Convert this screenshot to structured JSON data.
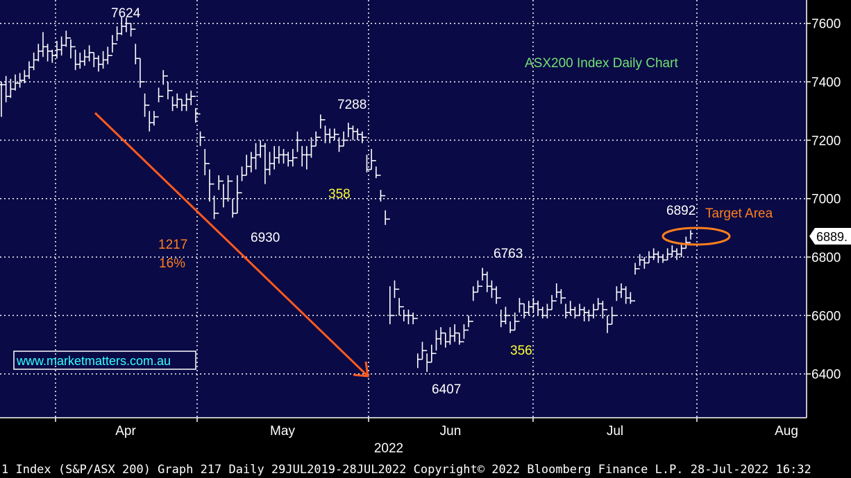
{
  "chart_data": {
    "type": "bar",
    "style": "ohlc",
    "title": "ASX200 Index Daily Chart",
    "ylim": [
      6250,
      7680
    ],
    "yticks": [
      6400,
      6600,
      6800,
      7000,
      7200,
      7400,
      7600
    ],
    "ytick_labels": [
      "6400",
      "6600",
      "6800",
      "7000",
      "7200",
      "7400",
      "7600"
    ],
    "month_labels": [
      "Apr",
      "May",
      "Jun",
      "Jul",
      "Aug"
    ],
    "year_label": "2022",
    "last_price_label": "6889.",
    "grid": true,
    "series": [
      {
        "values": [
          [
            7390,
            7280,
            7400
          ],
          [
            7350,
            7330,
            7420
          ],
          [
            7375,
            7345,
            7410
          ],
          [
            7395,
            7370,
            7425
          ],
          [
            7405,
            7380,
            7430
          ],
          [
            7420,
            7395,
            7440
          ],
          [
            7450,
            7410,
            7470
          ],
          [
            7475,
            7440,
            7500
          ],
          [
            7505,
            7470,
            7530
          ],
          [
            7520,
            7485,
            7570
          ],
          [
            7505,
            7470,
            7530
          ],
          [
            7490,
            7465,
            7510
          ],
          [
            7510,
            7480,
            7540
          ],
          [
            7525,
            7490,
            7555
          ],
          [
            7550,
            7520,
            7575
          ],
          [
            7520,
            7480,
            7545
          ],
          [
            7460,
            7440,
            7510
          ],
          [
            7470,
            7445,
            7500
          ],
          [
            7485,
            7455,
            7510
          ],
          [
            7500,
            7470,
            7525
          ],
          [
            7480,
            7450,
            7500
          ],
          [
            7460,
            7435,
            7490
          ],
          [
            7475,
            7445,
            7505
          ],
          [
            7490,
            7460,
            7520
          ],
          [
            7530,
            7500,
            7560
          ],
          [
            7565,
            7540,
            7590
          ],
          [
            7590,
            7560,
            7624
          ],
          [
            7600,
            7570,
            7620
          ],
          [
            7580,
            7555,
            7600
          ],
          [
            7480,
            7460,
            7530
          ],
          [
            7400,
            7380,
            7480
          ],
          [
            7320,
            7280,
            7360
          ],
          [
            7260,
            7230,
            7300
          ],
          [
            7280,
            7250,
            7300
          ],
          [
            7350,
            7330,
            7380
          ],
          [
            7420,
            7390,
            7440
          ],
          [
            7370,
            7340,
            7400
          ],
          [
            7320,
            7300,
            7350
          ],
          [
            7340,
            7310,
            7360
          ],
          [
            7320,
            7300,
            7340
          ],
          [
            7340,
            7300,
            7360
          ],
          [
            7350,
            7320,
            7370
          ],
          [
            7290,
            7260,
            7310
          ],
          [
            7210,
            7180,
            7230
          ],
          [
            7120,
            7080,
            7170
          ],
          [
            7050,
            6990,
            7100
          ],
          [
            6950,
            6930,
            7010
          ],
          [
            7060,
            7030,
            7080
          ],
          [
            7000,
            6970,
            7050
          ],
          [
            7060,
            6990,
            7080
          ],
          [
            6950,
            6935,
            7000
          ],
          [
            7020,
            6950,
            7080
          ],
          [
            7080,
            7060,
            7110
          ],
          [
            7110,
            7080,
            7150
          ],
          [
            7140,
            7090,
            7160
          ],
          [
            7150,
            7100,
            7190
          ],
          [
            7180,
            7140,
            7200
          ],
          [
            7100,
            7050,
            7190
          ],
          [
            7120,
            7080,
            7160
          ],
          [
            7140,
            7100,
            7180
          ],
          [
            7150,
            7120,
            7180
          ],
          [
            7150,
            7120,
            7170
          ],
          [
            7130,
            7110,
            7160
          ],
          [
            7140,
            7110,
            7170
          ],
          [
            7200,
            7160,
            7230
          ],
          [
            7150,
            7110,
            7180
          ],
          [
            7150,
            7100,
            7180
          ],
          [
            7180,
            7140,
            7210
          ],
          [
            7210,
            7180,
            7230
          ],
          [
            7270,
            7240,
            7288
          ],
          [
            7220,
            7190,
            7250
          ],
          [
            7210,
            7190,
            7240
          ],
          [
            7220,
            7200,
            7240
          ],
          [
            7180,
            7160,
            7210
          ],
          [
            7200,
            7180,
            7230
          ],
          [
            7240,
            7210,
            7260
          ],
          [
            7230,
            7200,
            7250
          ],
          [
            7220,
            7200,
            7240
          ],
          [
            7210,
            7190,
            7230
          ],
          [
            7100,
            7090,
            7150
          ],
          [
            7130,
            7100,
            7170
          ],
          [
            7080,
            7070,
            7110
          ],
          [
            7010,
            6990,
            7030
          ],
          [
            6930,
            6910,
            6960
          ],
          [
            6600,
            6570,
            6700
          ],
          [
            6690,
            6660,
            6720
          ],
          [
            6630,
            6600,
            6660
          ],
          [
            6600,
            6580,
            6620
          ],
          [
            6600,
            6570,
            6620
          ],
          [
            6590,
            6570,
            6610
          ],
          [
            6450,
            6420,
            6470
          ],
          [
            6480,
            6450,
            6510
          ],
          [
            6440,
            6407,
            6470
          ],
          [
            6470,
            6440,
            6500
          ],
          [
            6520,
            6480,
            6550
          ],
          [
            6540,
            6500,
            6560
          ],
          [
            6510,
            6490,
            6540
          ],
          [
            6530,
            6500,
            6560
          ],
          [
            6540,
            6510,
            6570
          ],
          [
            6510,
            6500,
            6540
          ],
          [
            6550,
            6520,
            6570
          ],
          [
            6580,
            6560,
            6600
          ],
          [
            6680,
            6650,
            6700
          ],
          [
            6700,
            6680,
            6720
          ],
          [
            6740,
            6720,
            6763
          ],
          [
            6700,
            6680,
            6750
          ],
          [
            6690,
            6660,
            6720
          ],
          [
            6660,
            6640,
            6700
          ],
          [
            6580,
            6560,
            6620
          ],
          [
            6600,
            6570,
            6630
          ],
          [
            6550,
            6540,
            6580
          ],
          [
            6580,
            6550,
            6610
          ],
          [
            6640,
            6610,
            6660
          ],
          [
            6610,
            6590,
            6640
          ],
          [
            6630,
            6600,
            6650
          ],
          [
            6640,
            6610,
            6660
          ],
          [
            6620,
            6600,
            6650
          ],
          [
            6600,
            6590,
            6630
          ],
          [
            6620,
            6590,
            6640
          ],
          [
            6650,
            6620,
            6670
          ],
          [
            6680,
            6660,
            6710
          ],
          [
            6660,
            6640,
            6690
          ],
          [
            6610,
            6590,
            6640
          ],
          [
            6620,
            6600,
            6650
          ],
          [
            6600,
            6590,
            6630
          ],
          [
            6620,
            6600,
            6640
          ],
          [
            6610,
            6580,
            6630
          ],
          [
            6600,
            6580,
            6620
          ],
          [
            6620,
            6590,
            6640
          ],
          [
            6640,
            6620,
            6660
          ],
          [
            6620,
            6590,
            6650
          ],
          [
            6570,
            6540,
            6600
          ],
          [
            6600,
            6570,
            6630
          ],
          [
            6680,
            6650,
            6700
          ],
          [
            6690,
            6660,
            6710
          ],
          [
            6660,
            6640,
            6700
          ],
          [
            6650,
            6640,
            6680
          ],
          [
            6760,
            6740,
            6780
          ],
          [
            6790,
            6770,
            6810
          ],
          [
            6780,
            6760,
            6800
          ],
          [
            6800,
            6780,
            6820
          ],
          [
            6810,
            6790,
            6830
          ],
          [
            6800,
            6780,
            6820
          ],
          [
            6790,
            6780,
            6810
          ],
          [
            6810,
            6790,
            6830
          ],
          [
            6820,
            6800,
            6840
          ],
          [
            6810,
            6790,
            6830
          ],
          [
            6830,
            6800,
            6850
          ],
          [
            6850,
            6830,
            6870
          ],
          [
            6880,
            6860,
            6892
          ]
        ]
      }
    ],
    "annotations": [
      {
        "text": "7624",
        "value": 7624,
        "color": "#ffffff"
      },
      {
        "text": "6930",
        "value": 6930,
        "color": "#ffffff"
      },
      {
        "text": "7288",
        "value": 7288,
        "color": "#ffffff"
      },
      {
        "text": "358",
        "value": 358,
        "color": "#ffff33"
      },
      {
        "text": "6407",
        "value": 6407,
        "color": "#ffffff"
      },
      {
        "text": "6763",
        "value": 6763,
        "color": "#ffffff"
      },
      {
        "text": "356",
        "value": 356,
        "color": "#ffff33"
      },
      {
        "text": "6892",
        "value": 6892,
        "color": "#ffffff"
      },
      {
        "text": "Target Area",
        "color": "#ff7f1e"
      },
      {
        "text": "1217",
        "value": 1217,
        "color": "#ff7f1e"
      },
      {
        "text": "16%",
        "color": "#ff7f1e"
      }
    ],
    "watermark": "www.marketmatters.com.au",
    "footer": "1 Index (S&P/ASX 200) Graph 217  Daily 29JUL2019-28JUL2022  Copyright© 2022 Bloomberg Finance L.P. 28-Jul-2022 16:32",
    "colors": {
      "plot_bg": "#0a0a46",
      "price": "#ffffff",
      "grid": "#ffffff",
      "title": "#72e072",
      "arrow": "#ff5a1e",
      "annotation_orange": "#ff7f1e",
      "annotation_yellow": "#ffff33"
    }
  }
}
